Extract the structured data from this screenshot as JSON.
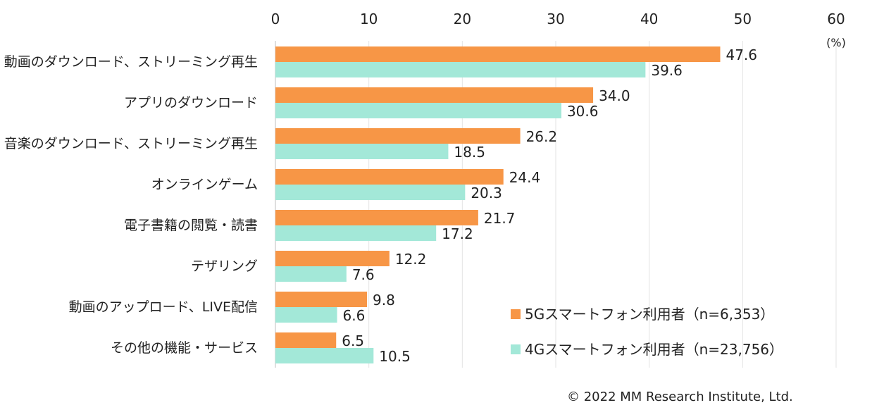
{
  "chart_data": {
    "type": "bar",
    "orientation": "horizontal",
    "categories": [
      "動画のダウンロード、ストリーミング再生",
      "アプリのダウンロード",
      "音楽のダウンロード、ストリーミング再生",
      "オンラインゲーム",
      "電子書籍の閲覧・読書",
      "テザリング",
      "動画のアップロード、LIVE配信",
      "その他の機能・サービス"
    ],
    "series": [
      {
        "name": "5Gスマートフォン利用者（n=6,353）",
        "color": "#f79646",
        "values": [
          47.6,
          34.0,
          26.2,
          24.4,
          21.7,
          12.2,
          9.8,
          6.5
        ]
      },
      {
        "name": "4Gスマートフォン利用者（n=23,756）",
        "color": "#a3e8d8",
        "values": [
          39.6,
          30.6,
          18.5,
          20.3,
          17.2,
          7.6,
          6.6,
          10.5
        ]
      }
    ],
    "xlim": [
      0,
      60
    ],
    "ticks": [
      0,
      10,
      20,
      30,
      40,
      50,
      60
    ],
    "unit_label": "(%)",
    "grid": true,
    "legend_position": "bottom-right"
  },
  "copyright": "© 2022 MM Research Institute, Ltd."
}
